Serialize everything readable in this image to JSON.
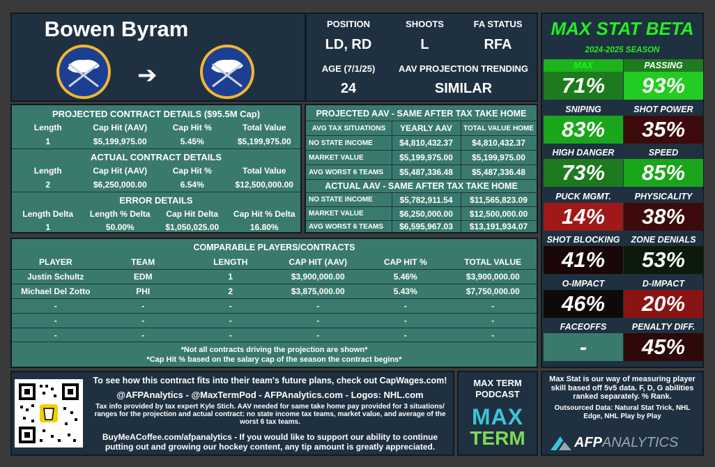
{
  "player": {
    "name": "Bowen Byram"
  },
  "position": {
    "label": "POSITION",
    "value": "LD, RD"
  },
  "shoots": {
    "label": "SHOOTS",
    "value": "L"
  },
  "fa": {
    "label": "FA STATUS",
    "value": "RFA"
  },
  "age": {
    "label": "AGE (7/1/25)",
    "value": "24"
  },
  "trend": {
    "label": "AAV PROJECTION TRENDING",
    "value": "SIMILAR"
  },
  "projected": {
    "title": "PROJECTED CONTRACT DETAILS ($95.5M Cap)",
    "headers": [
      "Length",
      "Cap Hit (AAV)",
      "Cap Hit %",
      "Total Value"
    ],
    "values": [
      "1",
      "$5,199,975.00",
      "5.45%",
      "$5,199,975.00"
    ]
  },
  "actual": {
    "title": "ACTUAL CONTRACT DETAILS",
    "headers": [
      "Length",
      "Cap Hit (AAV)",
      "Cap Hit %",
      "Total Value"
    ],
    "values": [
      "2",
      "$6,250,000.00",
      "6.54%",
      "$12,500,000.00"
    ]
  },
  "error": {
    "title": "ERROR DETAILS",
    "headers": [
      "Length Delta",
      "Length % Delta",
      "Cap Hit Delta",
      "Cap Hit % Delta"
    ],
    "values": [
      "1",
      "50.00%",
      "$1,050,025.00",
      "16.80%"
    ]
  },
  "proj_tax": {
    "title": "PROJECTED AAV - SAME AFTER TAX TAKE HOME",
    "headers": [
      "AVG TAX SITUATIONS",
      "YEARLY AAV",
      "TOTAL VALUE HOME"
    ],
    "rows": [
      [
        "NO STATE INCOME",
        "$4,810,432.37",
        "$4,810,432.37"
      ],
      [
        "MARKET VALUE",
        "$5,199,975.00",
        "$5,199,975.00"
      ],
      [
        "AVG WORST 6 TEAMS",
        "$5,487,336.48",
        "$5,487,336.48"
      ]
    ]
  },
  "act_tax": {
    "title": "ACTUAL AAV - SAME AFTER TAX TAKE HOME",
    "rows": [
      [
        "NO STATE INCOME",
        "$5,782,911.54",
        "$11,565,823.09"
      ],
      [
        "MARKET VALUE",
        "$6,250,000.00",
        "$12,500,000.00"
      ],
      [
        "AVG WORST 6 TEAMS",
        "$6,595,967.03",
        "$13,191,934.07"
      ]
    ]
  },
  "comps": {
    "title": "COMPARABLE PLAYERS/CONTRACTS",
    "headers": [
      "PLAYER",
      "TEAM",
      "LENGTH",
      "CAP HIT (AAV)",
      "CAP HIT %",
      "TOTAL VALUE"
    ],
    "rows": [
      [
        "Justin Schultz",
        "EDM",
        "1",
        "$3,900,000.00",
        "5.46%",
        "$3,900,000.00"
      ],
      [
        "Michael Del Zotto",
        "PHI",
        "2",
        "$3,875,000.00",
        "5.43%",
        "$7,750,000.00"
      ],
      [
        "-",
        "-",
        "-",
        "-",
        "-",
        "-"
      ],
      [
        "-",
        "-",
        "-",
        "-",
        "-",
        "-"
      ],
      [
        "-",
        "-",
        "-",
        "-",
        "-",
        "-"
      ]
    ],
    "note1": "*Not all contracts driving the projection are shown*",
    "note2": "*Cap Hit % based on the salary cap of the season the contract begins*"
  },
  "maxstat": {
    "title": "MAX STAT BETA",
    "season": "2024-2025 SEASON",
    "stats": [
      {
        "label": "MAX",
        "value": "71%",
        "color": "#1e7a1e",
        "lcolor": "#1db31d"
      },
      {
        "label": "PASSING",
        "value": "93%",
        "color": "#22cc22",
        "lcolor": "#1e7a1e"
      },
      {
        "label": "SNIPING",
        "value": "83%",
        "color": "#1aa61a",
        "lcolor": "#1e7a1e"
      },
      {
        "label": "SHOT POWER",
        "value": "35%",
        "color": "#3d0b0b",
        "lcolor": "#1e7a1e"
      },
      {
        "label": "HIGH DANGER",
        "value": "73%",
        "color": "#1e7a1e",
        "lcolor": "#1e7a1e"
      },
      {
        "label": "SPEED",
        "value": "85%",
        "color": "#1aa61a",
        "lcolor": "#1e7a1e"
      },
      {
        "label": "PUCK MGMT.",
        "value": "14%",
        "color": "#a01818",
        "lcolor": "#1e7a1e"
      },
      {
        "label": "PHYSICALITY",
        "value": "38%",
        "color": "#3d0b0b",
        "lcolor": "#1e7a1e"
      },
      {
        "label": "SHOT BLOCKING",
        "value": "41%",
        "color": "#1a0606",
        "lcolor": "#1e7a1e"
      },
      {
        "label": "ZONE DENIALS",
        "value": "53%",
        "color": "#0b1a0b",
        "lcolor": "#1e7a1e"
      },
      {
        "label": "O-IMPACT",
        "value": "46%",
        "color": "#0e0a0a",
        "lcolor": "#1e7a1e"
      },
      {
        "label": "D-IMPACT",
        "value": "20%",
        "color": "#8a1414",
        "lcolor": "#1e7a1e"
      },
      {
        "label": "FACEOFFS",
        "value": "-",
        "color": "#3a7a6e",
        "lcolor": "#1e7a1e"
      },
      {
        "label": "PENALTY DIFF.",
        "value": "45%",
        "color": "#2e0909",
        "lcolor": "#1e7a1e"
      }
    ]
  },
  "footer": {
    "line1": "To see how this contract fits into their team's future plans, check out CapWages.com!",
    "line2": "@AFPAnalytics - @MaxTermPod - AFPAnalytics.com - Logos: NHL.com",
    "line3": "Tax info provided by tax expert Kyle Stich. AAV needed for same take home pay provided for 3 situations/ ranges for the projection and actual contract: no state income tax teams, market value, and average of the worst 6 tax teams.",
    "line4": "BuyMeACoffee.com/afpanalytics - If you would like to support our ability to continue putting out and growing our hockey content, any tip amount is greatly appreciated.",
    "podcast": "MAX TERM PODCAST",
    "logo_max": "MAX",
    "logo_term": "TERM",
    "maxstat_desc": "Max Stat is our way of measuring player skill based off 5v5 data. F, D, G abilities ranked separately. % Rank.",
    "outsourced": "Outsourced Data: Natural Stat Trick, NHL Edge, NHL Play by Play",
    "afp_a": "AFP",
    "afp_b": "ANALYTICS"
  }
}
